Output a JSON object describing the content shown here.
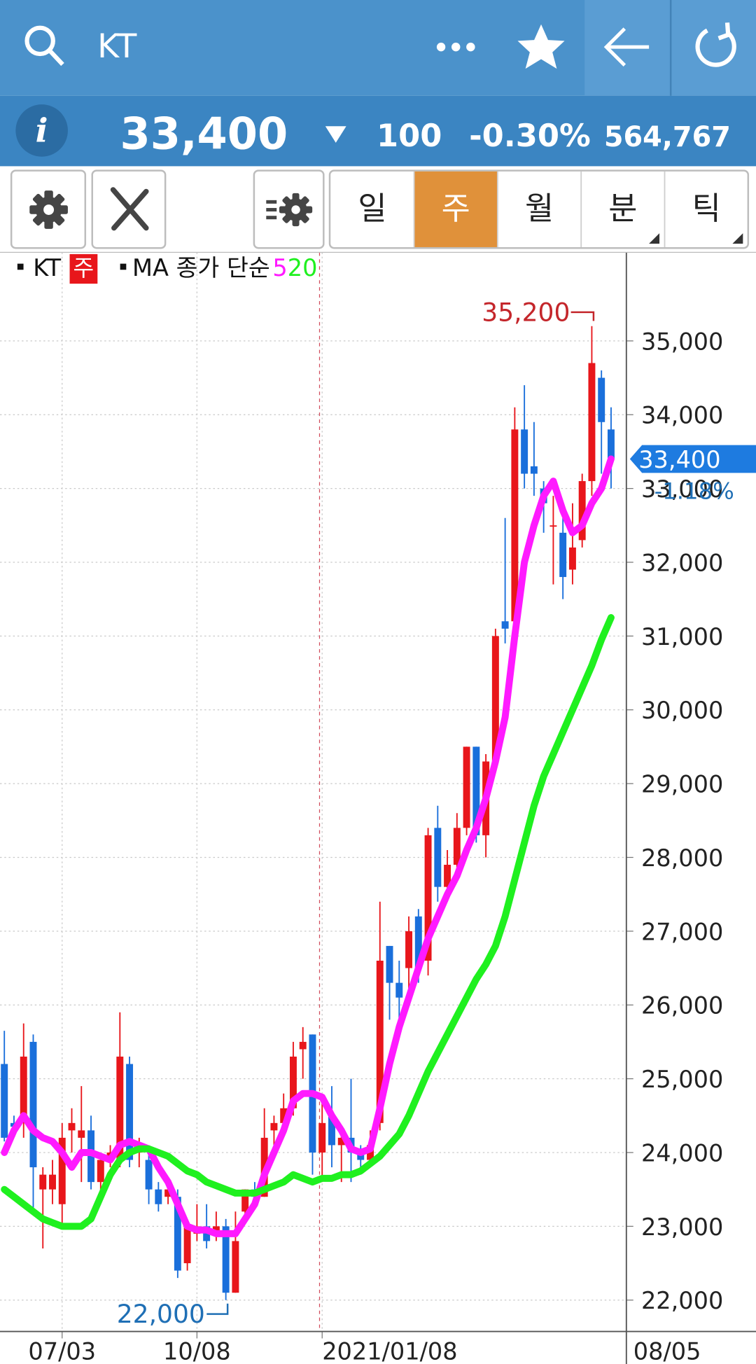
{
  "header": {
    "search_text": "KT"
  },
  "quote": {
    "info_icon": "i",
    "price": "33,400",
    "change": "100",
    "change_pct": "-0.30%",
    "volume": "564,767"
  },
  "tabs": {
    "items": [
      "일",
      "주",
      "월",
      "분",
      "틱"
    ],
    "selected": 1
  },
  "chart_data": {
    "type": "candlestick",
    "categories": [
      null,
      null,
      null,
      null,
      null,
      null,
      "07/03",
      null,
      null,
      null,
      null,
      null,
      null,
      null,
      null,
      null,
      null,
      null,
      null,
      null,
      "10/08",
      null,
      null,
      null,
      null,
      null,
      null,
      null,
      null,
      null,
      null,
      null,
      null,
      "2021/01/08",
      null,
      null,
      null,
      null,
      null,
      null,
      null,
      null,
      null,
      null,
      null,
      null,
      null,
      null,
      null,
      null,
      null,
      null,
      null,
      null,
      null,
      null,
      null,
      null,
      null,
      null,
      null,
      null,
      null,
      null
    ],
    "series": [
      {
        "name": "KT",
        "interval_label": "주",
        "up_color": "#e8161b",
        "down_color": "#1a6fdb",
        "open": [
          25200,
          24400,
          24400,
          25500,
          23500,
          23500,
          23300,
          24300,
          24200,
          24300,
          23600,
          23900,
          23900,
          25200,
          24000,
          23900,
          23500,
          23400,
          23400,
          22500,
          22900,
          23000,
          22900,
          23000,
          22100,
          23200,
          23500,
          23400,
          24300,
          24400,
          24600,
          25400,
          25600,
          24000,
          24500,
          24100,
          24200,
          24000,
          23900,
          24400,
          26800,
          26300,
          26500,
          27200,
          26600,
          28400,
          27600,
          27900,
          28400,
          29500,
          28300,
          29300,
          31200,
          31200,
          33800,
          33300,
          33000,
          32500,
          32400,
          31900,
          32300,
          33100,
          34500,
          33800
        ],
        "high": [
          25650,
          24500,
          25750,
          25600,
          23800,
          23900,
          24400,
          24600,
          24900,
          24500,
          23900,
          24100,
          25900,
          25300,
          24200,
          24100,
          23600,
          23600,
          23500,
          23100,
          23300,
          23300,
          23200,
          23100,
          23200,
          23500,
          23600,
          24600,
          24500,
          24800,
          25500,
          25700,
          25600,
          24700,
          24900,
          24300,
          25000,
          24100,
          24300,
          27400,
          26800,
          26600,
          27200,
          27300,
          28400,
          28700,
          28100,
          28600,
          29500,
          29500,
          29400,
          31100,
          32600,
          34100,
          34400,
          33900,
          33100,
          32900,
          32600,
          32800,
          33200,
          35200,
          34600,
          34100
        ],
        "low": [
          24150,
          24300,
          24200,
          23200,
          22700,
          23300,
          23000,
          24000,
          23600,
          23500,
          23400,
          23800,
          23800,
          23800,
          23800,
          23300,
          23200,
          23300,
          22300,
          22400,
          22800,
          22700,
          22800,
          22000,
          22100,
          23100,
          23400,
          23400,
          24100,
          24300,
          24500,
          25000,
          23700,
          23600,
          23800,
          23600,
          23600,
          23700,
          23800,
          24300,
          25800,
          25800,
          26200,
          26300,
          26400,
          27400,
          27400,
          27800,
          28300,
          28200,
          28000,
          29300,
          30900,
          31100,
          33000,
          32900,
          32400,
          31700,
          31500,
          31700,
          32200,
          32900,
          33200,
          33000
        ],
        "close": [
          24200,
          24350,
          25300,
          23800,
          23700,
          23700,
          24200,
          24400,
          24300,
          23600,
          23900,
          24000,
          25300,
          23900,
          24100,
          23500,
          23300,
          23500,
          22400,
          23000,
          23000,
          22800,
          23000,
          22100,
          22800,
          23500,
          23400,
          24200,
          24400,
          24600,
          25300,
          25500,
          24000,
          24400,
          24100,
          24200,
          24000,
          23900,
          24100,
          26600,
          26300,
          26100,
          27000,
          26500,
          28300,
          27600,
          27900,
          28400,
          29500,
          28300,
          29300,
          31000,
          31100,
          33800,
          33200,
          33200,
          32800,
          32500,
          31800,
          32200,
          33100,
          34700,
          33900,
          33400
        ]
      },
      {
        "name": "5",
        "color": "#ff1aff",
        "values": [
          24000,
          24300,
          24500,
          24300,
          24200,
          24150,
          24000,
          23800,
          24000,
          24000,
          23950,
          23900,
          24100,
          24150,
          24100,
          24050,
          23800,
          23600,
          23300,
          23000,
          22950,
          22950,
          22900,
          22900,
          22900,
          23100,
          23300,
          23700,
          24000,
          24300,
          24700,
          24800,
          24800,
          24750,
          24500,
          24300,
          24050,
          24000,
          24050,
          24600,
          25200,
          25700,
          26100,
          26500,
          26900,
          27200,
          27500,
          27750,
          28100,
          28400,
          28800,
          29300,
          29900,
          31000,
          32000,
          32500,
          32900,
          33100,
          32700,
          32400,
          32500,
          32800,
          33000,
          33400
        ]
      },
      {
        "name": "20",
        "color": "#1ff01f",
        "values": [
          23500,
          23400,
          23300,
          23200,
          23100,
          23050,
          23000,
          23000,
          23000,
          23100,
          23400,
          23700,
          23900,
          24000,
          24050,
          24050,
          24000,
          23950,
          23850,
          23750,
          23700,
          23600,
          23550,
          23500,
          23450,
          23450,
          23450,
          23500,
          23550,
          23600,
          23700,
          23650,
          23600,
          23650,
          23650,
          23700,
          23700,
          23750,
          23850,
          23950,
          24100,
          24250,
          24500,
          24800,
          25100,
          25350,
          25600,
          25850,
          26100,
          26350,
          26550,
          26800,
          27200,
          27700,
          28200,
          28700,
          29100,
          29400,
          29700,
          30000,
          30300,
          30600,
          30950,
          31250
        ]
      }
    ],
    "ma_label": "MA 종가 단순",
    "ylim": [
      21575,
      36200
    ],
    "yticks": [
      {
        "value": 22000,
        "label": "22,000"
      },
      {
        "value": 23000,
        "label": "23,000"
      },
      {
        "value": 24000,
        "label": "24,000"
      },
      {
        "value": 25000,
        "label": "25,000"
      },
      {
        "value": 26000,
        "label": "26,000"
      },
      {
        "value": 27000,
        "label": "27,000"
      },
      {
        "value": 28000,
        "label": "28,000"
      },
      {
        "value": 29000,
        "label": "29,000"
      },
      {
        "value": 30000,
        "label": "30,000"
      },
      {
        "value": 31000,
        "label": "31,000"
      },
      {
        "value": 32000,
        "label": "32,000"
      },
      {
        "value": 33000,
        "label": "33,000"
      },
      {
        "value": 34000,
        "label": "34,000"
      },
      {
        "value": 35000,
        "label": "35,000"
      }
    ],
    "grid": true,
    "high_label": "35,200",
    "low_label": "22,000",
    "last_price_label": "33,400",
    "last_change_label": "-1.18%",
    "end_date_label": "08/05"
  }
}
